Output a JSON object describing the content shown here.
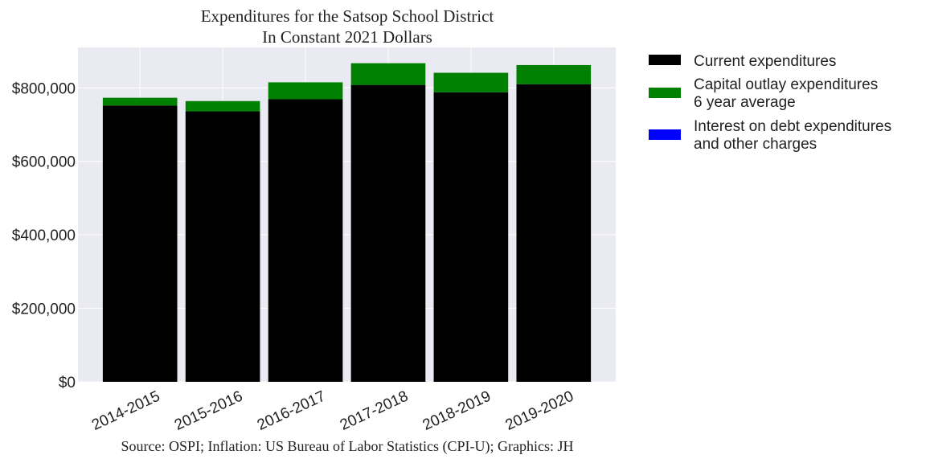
{
  "chart_data": {
    "type": "bar",
    "stacked": true,
    "title_lines": [
      "Expenditures for the Satsop School District",
      "In Constant 2021 Dollars"
    ],
    "source": "Source: OSPI; Inflation: US Bureau of Labor Statistics (CPI-U); Graphics: JH",
    "categories": [
      "2014-2015",
      "2015-2016",
      "2016-2017",
      "2017-2018",
      "2018-2019",
      "2019-2020"
    ],
    "series": [
      {
        "name": "Current expenditures",
        "color": "#000000",
        "values": [
          752000,
          736000,
          769000,
          808000,
          788000,
          810000
        ]
      },
      {
        "name": "Capital outlay expenditures\n6 year average",
        "color": "#008000",
        "values": [
          21000,
          28000,
          46000,
          59000,
          53000,
          52000
        ]
      },
      {
        "name": "Interest on debt expenditures\nand other charges",
        "color": "#0000ff",
        "values": [
          0,
          0,
          0,
          0,
          0,
          0
        ]
      }
    ],
    "ylim": [
      0,
      910000
    ],
    "yticks": [
      0,
      200000,
      400000,
      600000,
      800000
    ],
    "ytick_labels": [
      "$0",
      "$200,000",
      "$400,000",
      "$600,000",
      "$800,000"
    ],
    "grid": true,
    "legend_position": "outside-right"
  }
}
